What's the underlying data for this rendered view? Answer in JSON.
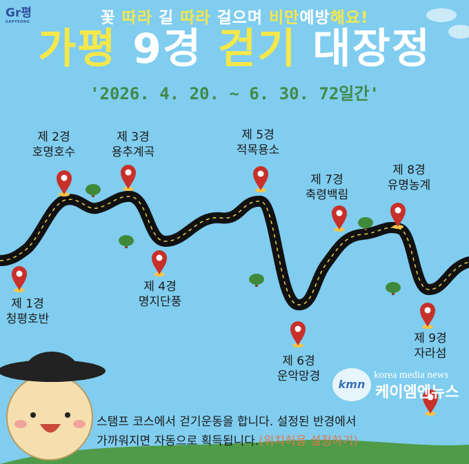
{
  "logo": {
    "text": "Gr평",
    "sub": "GAPYEONG"
  },
  "header": {
    "subtitle_parts": [
      {
        "text": "꽃 ",
        "highlight": false
      },
      {
        "text": "따라",
        "highlight": true
      },
      {
        "text": " 길 ",
        "highlight": false
      },
      {
        "text": "따라",
        "highlight": true
      },
      {
        "text": " 걸으며 ",
        "highlight": false
      },
      {
        "text": "비만",
        "highlight": true
      },
      {
        "text": "예방",
        "highlight": false
      },
      {
        "text": "해요!",
        "highlight": true
      }
    ],
    "title_parts": [
      {
        "text": "가평 ",
        "highlight": true
      },
      {
        "text": "9경 ",
        "highlight": false
      },
      {
        "text": "걷기 ",
        "highlight": true
      },
      {
        "text": "대장정",
        "highlight": false
      }
    ],
    "period": "'2026. 4. 20. ~ 6. 30. 72일간'"
  },
  "stops": [
    {
      "num": "제 1경",
      "name": "청평호반"
    },
    {
      "num": "제 2경",
      "name": "호명호수"
    },
    {
      "num": "제 3경",
      "name": "용추계곡"
    },
    {
      "num": "제 4경",
      "name": "명지단풍"
    },
    {
      "num": "제 5경",
      "name": "적목용소"
    },
    {
      "num": "제 6경",
      "name": "운악망경"
    },
    {
      "num": "제 7경",
      "name": "축령백림"
    },
    {
      "num": "제 8경",
      "name": "유명농계"
    },
    {
      "num": "제 9경",
      "name": "자라섬"
    }
  ],
  "description": {
    "line1": "스탬프 코스에서 걷기운동을 합니다. 설정된 반경에서",
    "line2": "가까워지면 자동으로 획득됩니다.",
    "note": "(위치허용 설정하기)"
  },
  "watermark": {
    "logo": "kmn",
    "en": "korea media news",
    "ko": "케이엠엔뉴스"
  },
  "colors": {
    "background": "#80cdef",
    "highlight": "#f6e84a",
    "period": "#3f8a4a",
    "pin": "#c8302a",
    "road": "#111111"
  }
}
